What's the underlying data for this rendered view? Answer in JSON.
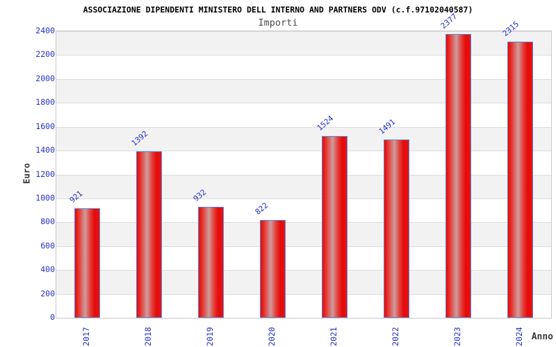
{
  "chart_data": {
    "type": "bar",
    "title": "ASSOCIAZIONE DIPENDENTI MINISTERO DELL INTERNO AND PARTNERS ODV (c.f.97102040587)",
    "subtitle": "Importi",
    "xlabel": "Anno",
    "ylabel": "Euro",
    "categories": [
      "2017",
      "2018",
      "2019",
      "2020",
      "2021",
      "2022",
      "2023",
      "2024"
    ],
    "values": [
      921,
      1392,
      932,
      822,
      1524,
      1491,
      2377,
      2315
    ],
    "ylim": [
      0,
      2400
    ],
    "ytick_step": 200,
    "grid": true,
    "legend_position": "none",
    "layout_hints": {
      "bands_alternating": true,
      "value_labels_rotation_deg": -40,
      "xtick_rotation_deg": -90
    },
    "colors": {
      "bar_red": "#e40b0b",
      "bar_center_highlight": "#cf9b9b",
      "bar_border": "#5588dd",
      "tick_label_blue": "#2230c8",
      "band_gray": "#f2f2f2",
      "grid_line": "#dcdcdc",
      "plot_border": "#c9c9c9",
      "title_color": "#000000",
      "subtitle_color": "#4a4a4a",
      "axis_title_color": "#3a3a3a",
      "background": "#ffffff"
    }
  }
}
